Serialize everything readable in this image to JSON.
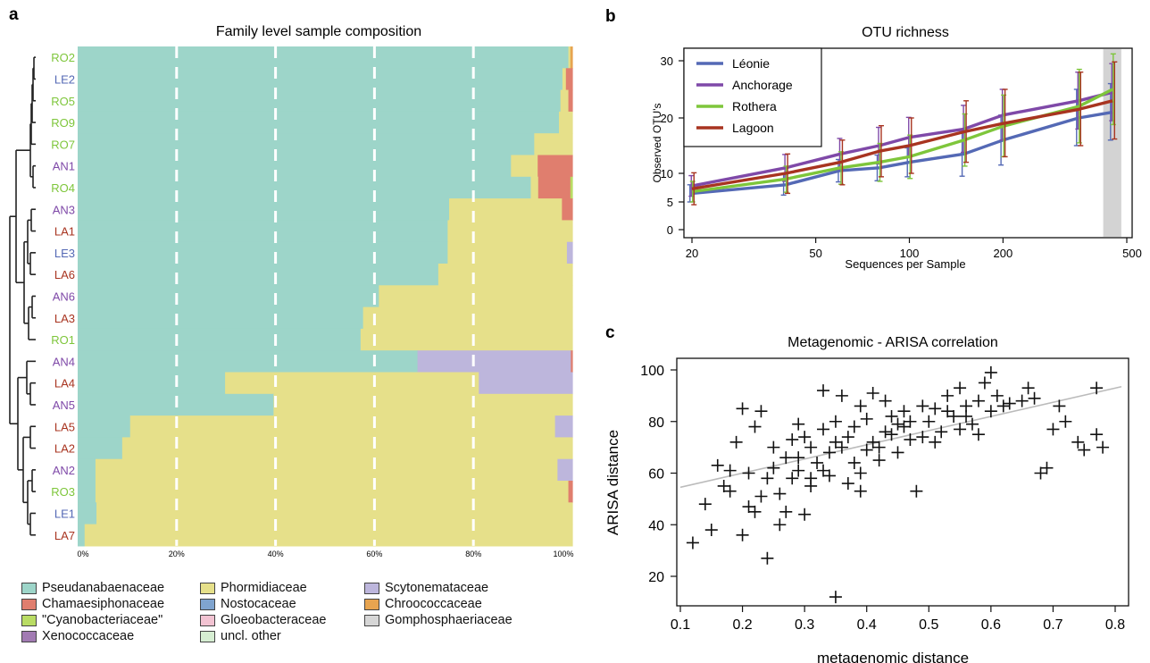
{
  "panels": {
    "a": "a",
    "b": "b",
    "c": "c"
  },
  "chart_data": [
    {
      "panel": "a",
      "type": "bar",
      "orientation": "horizontal-stacked",
      "title": "Family level sample composition",
      "x_ticks": [
        "0%",
        "20%",
        "40%",
        "60%",
        "80%",
        "100%"
      ],
      "xlim": [
        0,
        100
      ],
      "gridlines_x": [
        20,
        40,
        60,
        80
      ],
      "samples": [
        {
          "label": "RO2",
          "site": "Rothera",
          "values": {
            "Pseudanabaenaceae": 99.2,
            "Phormidiaceae": 0.4,
            "Chroococcaceae": 0.4
          }
        },
        {
          "label": "LE2",
          "site": "Léonie",
          "values": {
            "Pseudanabaenaceae": 98.0,
            "Phormidiaceae": 0.7,
            "Chamaesiphonaceae": 1.3
          }
        },
        {
          "label": "RO5",
          "site": "Rothera",
          "values": {
            "Pseudanabaenaceae": 97.6,
            "Phormidiaceae": 1.6,
            "Chamaesiphonaceae": 0.8
          }
        },
        {
          "label": "RO9",
          "site": "Rothera",
          "values": {
            "Pseudanabaenaceae": 97.3,
            "Phormidiaceae": 2.7
          }
        },
        {
          "label": "RO7",
          "site": "Rothera",
          "values": {
            "Pseudanabaenaceae": 92.3,
            "Phormidiaceae": 7.7
          }
        },
        {
          "label": "AN1",
          "site": "Anchorage",
          "values": {
            "Pseudanabaenaceae": 87.6,
            "Phormidiaceae": 5.4,
            "Chamaesiphonaceae": 7.0
          }
        },
        {
          "label": "RO4",
          "site": "Rothera",
          "values": {
            "Pseudanabaenaceae": 91.6,
            "Phormidiaceae": 1.5,
            "Chamaesiphonaceae": 6.5,
            "Cyanobacteriaceae": 0.4
          }
        },
        {
          "label": "AN3",
          "site": "Anchorage",
          "values": {
            "Pseudanabaenaceae": 75.1,
            "Phormidiaceae": 22.8,
            "Chamaesiphonaceae": 2.1
          }
        },
        {
          "label": "LA1",
          "site": "Lagoon",
          "values": {
            "Pseudanabaenaceae": 74.8,
            "Phormidiaceae": 25.2
          }
        },
        {
          "label": "LE3",
          "site": "Léonie",
          "values": {
            "Pseudanabaenaceae": 74.8,
            "Phormidiaceae": 24.1,
            "Scytonemataceae": 1.1
          }
        },
        {
          "label": "LA6",
          "site": "Lagoon",
          "values": {
            "Pseudanabaenaceae": 72.9,
            "Phormidiaceae": 27.1
          }
        },
        {
          "label": "AN6",
          "site": "Anchorage",
          "values": {
            "Pseudanabaenaceae": 60.9,
            "Phormidiaceae": 39.1
          }
        },
        {
          "label": "LA3",
          "site": "Lagoon",
          "values": {
            "Pseudanabaenaceae": 57.7,
            "Phormidiaceae": 42.3
          }
        },
        {
          "label": "RO1",
          "site": "Rothera",
          "values": {
            "Pseudanabaenaceae": 57.2,
            "Phormidiaceae": 42.8
          }
        },
        {
          "label": "AN4",
          "site": "Anchorage",
          "values": {
            "Pseudanabaenaceae": 68.7,
            "Scytonemataceae": 31.0,
            "Chamaesiphonaceae": 0.3
          }
        },
        {
          "label": "LA4",
          "site": "Lagoon",
          "values": {
            "Pseudanabaenaceae": 29.8,
            "Phormidiaceae": 51.3,
            "Scytonemataceae": 18.9
          }
        },
        {
          "label": "AN5",
          "site": "Anchorage",
          "values": {
            "Pseudanabaenaceae": 39.6,
            "Phormidiaceae": 60.4
          }
        },
        {
          "label": "LA5",
          "site": "Lagoon",
          "values": {
            "Pseudanabaenaceae": 10.6,
            "Phormidiaceae": 85.9,
            "Scytonemataceae": 3.5
          }
        },
        {
          "label": "LA2",
          "site": "Lagoon",
          "values": {
            "Pseudanabaenaceae": 9.0,
            "Phormidiaceae": 91.0
          }
        },
        {
          "label": "AN2",
          "site": "Anchorage",
          "values": {
            "Pseudanabaenaceae": 3.6,
            "Phormidiaceae": 93.4,
            "Scytonemataceae": 3.0
          }
        },
        {
          "label": "RO3",
          "site": "Rothera",
          "values": {
            "Pseudanabaenaceae": 3.6,
            "Phormidiaceae": 95.6,
            "Chamaesiphonaceae": 0.8
          }
        },
        {
          "label": "LE1",
          "site": "Léonie",
          "values": {
            "Pseudanabaenaceae": 3.8,
            "Phormidiaceae": 96.2
          }
        },
        {
          "label": "LA7",
          "site": "Lagoon",
          "values": {
            "Pseudanabaenaceae": 1.4,
            "Phormidiaceae": 98.6
          }
        }
      ],
      "site_colors": {
        "Rothera": "#7ec63b",
        "Léonie": "#5469b5",
        "Anchorage": "#7f49a8",
        "Lagoon": "#a83420"
      },
      "legend": {
        "placement": "bottom",
        "entries": [
          {
            "name": "Pseudanabaenaceae",
            "color": "#9dd5c9"
          },
          {
            "name": "Phormidiaceae",
            "color": "#e6e08a"
          },
          {
            "name": "Scytonemataceae",
            "color": "#bdb6dc"
          },
          {
            "name": "Chamaesiphonaceae",
            "color": "#e07e6e"
          },
          {
            "name": "Nostocaceae",
            "color": "#7fa4cf"
          },
          {
            "name": "Chroococcaceae",
            "color": "#e7a450"
          },
          {
            "name": "\"Cyanobacteriaceae\"",
            "color": "#b9dc64"
          },
          {
            "name": "Gloeobacteraceae",
            "color": "#f2c3d2"
          },
          {
            "name": "Gomphosphaeriaceae",
            "color": "#d6d6d6"
          },
          {
            "name": "Xenococcaceae",
            "color": "#a27bb3"
          },
          {
            "name": "uncl. other",
            "color": "#d6eed2"
          }
        ]
      },
      "dendrogram": true
    },
    {
      "panel": "b",
      "type": "line",
      "title": "OTU richness",
      "xlabel": "Sequences per Sample",
      "ylabel": "Observed OTU's",
      "x_scale": "log",
      "x": [
        20,
        40,
        60,
        80,
        100,
        150,
        200,
        350,
        450
      ],
      "x_ticks": [
        "20",
        "50",
        "100",
        "200",
        "500"
      ],
      "y_ticks": [
        "0",
        "5",
        "10",
        "20",
        "30"
      ],
      "ylim": [
        0,
        30
      ],
      "series": [
        {
          "name": "Léonie",
          "color": "#5469b5",
          "values": [
            6.5,
            8.0,
            10.5,
            11.0,
            12.0,
            13.5,
            16.0,
            20.0,
            21.0
          ],
          "err": [
            1.5,
            1.8,
            2.0,
            2.3,
            2.6,
            4.0,
            4.5,
            5.0,
            5.0
          ]
        },
        {
          "name": "Anchorage",
          "color": "#7f49a8",
          "values": [
            7.8,
            11.0,
            13.5,
            15.0,
            16.5,
            18.0,
            20.5,
            23.0,
            24.5
          ],
          "err": [
            1.8,
            2.4,
            2.8,
            3.3,
            3.6,
            4.2,
            4.5,
            5.0,
            5.0
          ]
        },
        {
          "name": "Rothera",
          "color": "#7ec63b",
          "values": [
            6.8,
            9.0,
            11.0,
            12.0,
            13.0,
            16.0,
            18.5,
            22.0,
            25.0
          ],
          "err": [
            1.8,
            2.3,
            2.9,
            3.4,
            3.9,
            4.7,
            5.5,
            6.5,
            6.2
          ]
        },
        {
          "name": "Lagoon",
          "color": "#a83420",
          "values": [
            7.3,
            10.0,
            12.0,
            14.0,
            15.0,
            17.5,
            19.0,
            21.5,
            23.0
          ],
          "err": [
            2.8,
            3.5,
            4.0,
            4.6,
            5.0,
            5.5,
            6.0,
            6.5,
            6.8
          ]
        }
      ],
      "shaded_band_x": [
        420,
        480
      ],
      "legend": {
        "placement": "top-left"
      }
    },
    {
      "panel": "c",
      "type": "scatter",
      "title": "Metagenomic - ARISA correlation",
      "xlabel": "metagenomic distance",
      "ylabel": "ARISA distance",
      "xlim": [
        0.1,
        0.8
      ],
      "ylim": [
        10,
        100
      ],
      "x_ticks": [
        "0.1",
        "0.2",
        "0.3",
        "0.4",
        "0.5",
        "0.6",
        "0.7",
        "0.8"
      ],
      "y_ticks": [
        "20",
        "40",
        "60",
        "80",
        "100"
      ],
      "fit_line": {
        "x": [
          0.1,
          0.81
        ],
        "y": [
          54.5,
          93.5
        ],
        "color": "#bbbbbb"
      },
      "points": [
        [
          0.12,
          33
        ],
        [
          0.14,
          48
        ],
        [
          0.15,
          38
        ],
        [
          0.16,
          63
        ],
        [
          0.17,
          55
        ],
        [
          0.18,
          61
        ],
        [
          0.19,
          72
        ],
        [
          0.2,
          85
        ],
        [
          0.2,
          36
        ],
        [
          0.21,
          60
        ],
        [
          0.22,
          45
        ],
        [
          0.22,
          78
        ],
        [
          0.23,
          84
        ],
        [
          0.24,
          58
        ],
        [
          0.24,
          27
        ],
        [
          0.25,
          70
        ],
        [
          0.26,
          52
        ],
        [
          0.26,
          40
        ],
        [
          0.27,
          66
        ],
        [
          0.28,
          73
        ],
        [
          0.28,
          58
        ],
        [
          0.29,
          61
        ],
        [
          0.29,
          79
        ],
        [
          0.3,
          74
        ],
        [
          0.3,
          44
        ],
        [
          0.31,
          70
        ],
        [
          0.31,
          55
        ],
        [
          0.32,
          64
        ],
        [
          0.33,
          92
        ],
        [
          0.33,
          77
        ],
        [
          0.34,
          68
        ],
        [
          0.34,
          59
        ],
        [
          0.35,
          12
        ],
        [
          0.35,
          80
        ],
        [
          0.36,
          70
        ],
        [
          0.36,
          90
        ],
        [
          0.37,
          56
        ],
        [
          0.38,
          78
        ],
        [
          0.38,
          64
        ],
        [
          0.39,
          86
        ],
        [
          0.39,
          53
        ],
        [
          0.4,
          69
        ],
        [
          0.4,
          81
        ],
        [
          0.41,
          91
        ],
        [
          0.41,
          72
        ],
        [
          0.42,
          65
        ],
        [
          0.43,
          88
        ],
        [
          0.43,
          76
        ],
        [
          0.44,
          82
        ],
        [
          0.45,
          68
        ],
        [
          0.45,
          79
        ],
        [
          0.46,
          84
        ],
        [
          0.47,
          73
        ],
        [
          0.47,
          80
        ],
        [
          0.48,
          53
        ],
        [
          0.49,
          86
        ],
        [
          0.5,
          80
        ],
        [
          0.51,
          72
        ],
        [
          0.52,
          76
        ],
        [
          0.53,
          84
        ],
        [
          0.54,
          82
        ],
        [
          0.55,
          93
        ],
        [
          0.55,
          77
        ],
        [
          0.56,
          86
        ],
        [
          0.57,
          79
        ],
        [
          0.58,
          88
        ],
        [
          0.58,
          75
        ],
        [
          0.59,
          95
        ],
        [
          0.6,
          99
        ],
        [
          0.61,
          90
        ],
        [
          0.62,
          86
        ],
        [
          0.65,
          88
        ],
        [
          0.66,
          93
        ],
        [
          0.67,
          89
        ],
        [
          0.68,
          60
        ],
        [
          0.69,
          62
        ],
        [
          0.7,
          77
        ],
        [
          0.71,
          86
        ],
        [
          0.72,
          80
        ],
        [
          0.74,
          72
        ],
        [
          0.75,
          69
        ],
        [
          0.77,
          93
        ],
        [
          0.77,
          75
        ],
        [
          0.78,
          70
        ],
        [
          0.18,
          53
        ],
        [
          0.21,
          47
        ],
        [
          0.23,
          51
        ],
        [
          0.25,
          62
        ],
        [
          0.27,
          45
        ],
        [
          0.29,
          66
        ],
        [
          0.31,
          58
        ],
        [
          0.33,
          61
        ],
        [
          0.35,
          72
        ],
        [
          0.37,
          74
        ],
        [
          0.39,
          60
        ],
        [
          0.42,
          70
        ],
        [
          0.44,
          75
        ],
        [
          0.46,
          78
        ],
        [
          0.49,
          74
        ],
        [
          0.51,
          85
        ],
        [
          0.53,
          90
        ],
        [
          0.56,
          82
        ],
        [
          0.6,
          84
        ],
        [
          0.63,
          87
        ]
      ]
    }
  ]
}
